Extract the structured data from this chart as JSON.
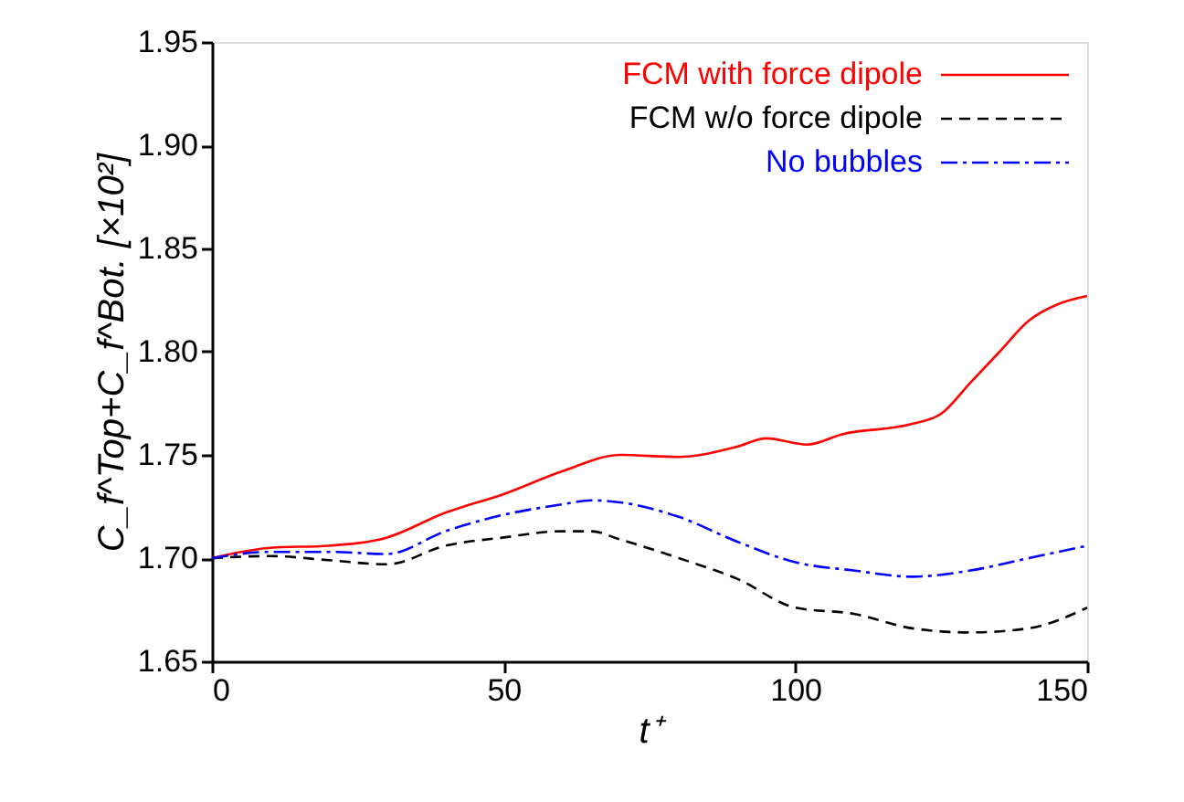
{
  "chart_data": {
    "type": "line",
    "xlabel": "t⁺",
    "ylabel": "C_f^Top+C_f^Bot. [×10²]",
    "xlim": [
      0,
      150
    ],
    "xticks": [
      0,
      50,
      100,
      150
    ],
    "ylim": [
      1.65,
      1.95
    ],
    "yticks": [
      1.65,
      {
        "value": 1.7,
        "label": "1.70"
      },
      1.75,
      {
        "value": 1.8,
        "label": "1.80"
      },
      1.85,
      {
        "value": 1.9,
        "label": "1.90"
      },
      1.95
    ],
    "grid": false,
    "legend": "top right",
    "marker": "none",
    "series": [
      {
        "name": "FCM with force dipole",
        "color": "#ff0000",
        "line_style": "solid",
        "x": [
          0,
          10,
          20,
          30,
          40,
          50,
          60,
          70,
          80,
          90,
          95,
          102,
          108,
          120,
          125,
          130,
          135,
          140,
          145,
          150
        ],
        "values": [
          1.7,
          1.705,
          1.706,
          1.71,
          1.722,
          1.731,
          1.742,
          1.75,
          1.749,
          1.754,
          1.758,
          1.755,
          1.76,
          1.765,
          1.77,
          1.785,
          1.8,
          1.815,
          1.823,
          1.827
        ]
      },
      {
        "name": "FCM w/o force dipole",
        "color": "#000000",
        "line_style": "dashed",
        "x": [
          0,
          10,
          20,
          30,
          40,
          50,
          60,
          65,
          70,
          80,
          90,
          100,
          110,
          120,
          130,
          140,
          150
        ],
        "values": [
          1.7,
          1.701,
          1.699,
          1.697,
          1.706,
          1.71,
          1.713,
          1.713,
          1.709,
          1.7,
          1.69,
          1.676,
          1.673,
          1.666,
          1.664,
          1.666,
          1.676
        ]
      },
      {
        "name": "No bubbles",
        "color": "#0000ff",
        "line_style": "dotted",
        "x": [
          0,
          10,
          20,
          30,
          40,
          50,
          60,
          65,
          70,
          80,
          90,
          100,
          110,
          120,
          130,
          140,
          150
        ],
        "values": [
          1.7,
          1.703,
          1.703,
          1.702,
          1.713,
          1.721,
          1.726,
          1.728,
          1.727,
          1.72,
          1.708,
          1.698,
          1.694,
          1.691,
          1.694,
          1.7,
          1.706
        ]
      }
    ]
  }
}
